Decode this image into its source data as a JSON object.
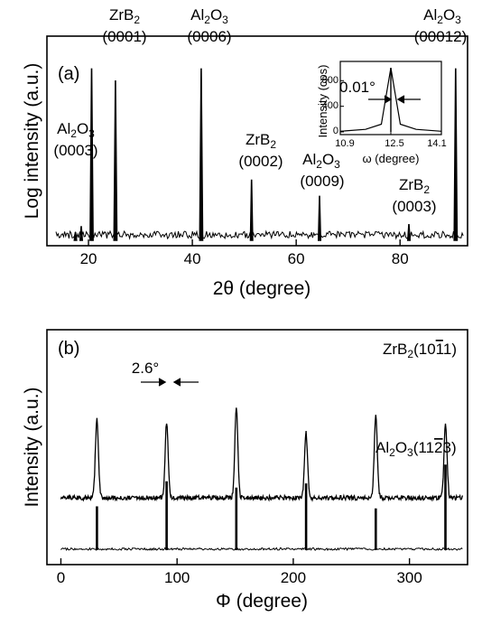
{
  "figure": {
    "panel_a": {
      "label": "(a)",
      "xlabel": "2θ (degree)",
      "ylabel": "Log intensity (a.u.)",
      "x_ticks": [
        "20",
        "40",
        "60",
        "80"
      ],
      "peaks": [
        {
          "species": "ZrB",
          "sub": "2",
          "index": "(0001)"
        },
        {
          "species": "Al",
          "sub": "2",
          "species2": "O",
          "sub2": "3",
          "index": "(0006)"
        },
        {
          "species": "Al",
          "sub": "2",
          "species2": "O",
          "sub2": "3",
          "index": "(00012)"
        },
        {
          "species": "Al",
          "sub": "2",
          "species2": "O",
          "sub2": "3",
          "index": "(0003)"
        },
        {
          "species": "ZrB",
          "sub": "2",
          "index": "(0002)"
        },
        {
          "species": "Al",
          "sub": "2",
          "species2": "O",
          "sub2": "3",
          "index": "(0009)"
        },
        {
          "species": "ZrB",
          "sub": "2",
          "index": "(0003)"
        }
      ],
      "inset": {
        "ylabel": "Intensity (cps)",
        "xlabel": "ω (degree)",
        "y_ticks": [
          "800",
          "400",
          "0"
        ],
        "x_ticks": [
          "10.9",
          "12.5",
          "14.1"
        ],
        "fwhm": "0.01°"
      }
    },
    "panel_b": {
      "label": "(b)",
      "xlabel": "Φ (degree)",
      "ylabel": "Intensity (a.u.)",
      "x_ticks": [
        "0",
        "100",
        "200",
        "300"
      ],
      "fwhm": "2.6°",
      "zrb2_label": {
        "pre": "ZrB",
        "sub": "2",
        "idx_pre": "(10",
        "idx_bar": "1",
        "idx_post": "1)"
      },
      "al2o3_label": {
        "pre": "Al",
        "sub": "2",
        "mid": "O",
        "sub2": "3",
        "idx_pre": "(11",
        "idx_bar": "2",
        "idx_post": "3)"
      }
    }
  },
  "chart_data": [
    {
      "type": "line",
      "title": "",
      "panel": "(a)",
      "xlabel": "2θ (degree)",
      "ylabel": "Log intensity (a.u.)",
      "xlim": [
        12,
        93
      ],
      "ylim": [
        0,
        1
      ],
      "y_scale": "log",
      "grid": false,
      "series": [
        {
          "x": [
            12,
            17.5,
            18.6,
            20.6,
            25.2,
            41.7,
            51.4,
            64.5,
            81.7,
            90.7,
            93
          ],
          "values": [
            0.03,
            0.04,
            0.07,
            0.85,
            0.79,
            0.85,
            0.3,
            0.22,
            0.08,
            0.85,
            0.03
          ]
        }
      ],
      "annotations": [
        {
          "x": 20.6,
          "text": "Al2O3 (0003)"
        },
        {
          "x": 25.2,
          "text": "ZrB2 (0001)"
        },
        {
          "x": 41.7,
          "text": "Al2O3 (0006)"
        },
        {
          "x": 51.4,
          "text": "ZrB2 (0002)"
        },
        {
          "x": 64.5,
          "text": "Al2O3 (0009)"
        },
        {
          "x": 81.7,
          "text": "ZrB2 (0003)"
        },
        {
          "x": 90.7,
          "text": "Al2O3 (00012)"
        }
      ]
    },
    {
      "type": "line",
      "title": "",
      "panel": "(a) inset",
      "xlabel": "ω (degree)",
      "ylabel": "Intensity (cps)",
      "xlim": [
        10.9,
        14.1
      ],
      "ylim": [
        0,
        1100
      ],
      "series": [
        {
          "x": [
            10.9,
            11.7,
            12.2,
            12.5,
            12.8,
            13.3,
            14.1
          ],
          "values": [
            10,
            40,
            120,
            1000,
            120,
            40,
            10
          ]
        }
      ],
      "annotations": [
        {
          "x": 12.5,
          "text": "0.01°"
        }
      ]
    },
    {
      "type": "line",
      "title": "",
      "panel": "(b)",
      "xlabel": "Φ (degree)",
      "ylabel": "Intensity (a.u.)",
      "xlim": [
        -12,
        350
      ],
      "ylim": [
        0,
        1
      ],
      "y_scale": "offset",
      "grid": false,
      "series": [
        {
          "name": "ZrB2(1011)",
          "x": [
            31,
            91,
            151,
            211,
            271,
            331
          ],
          "values": [
            0.62,
            0.6,
            0.67,
            0.55,
            0.64,
            0.59
          ],
          "baseline": 0.24
        },
        {
          "name": "Al2O3(1123)",
          "x": [
            31,
            91,
            151,
            211,
            271,
            331
          ],
          "values": [
            0.21,
            0.33,
            0.3,
            0.32,
            0.2,
            0.41
          ],
          "baseline": 0.0
        }
      ],
      "annotations": [
        {
          "x": 91,
          "text": "2.6°"
        }
      ]
    }
  ]
}
